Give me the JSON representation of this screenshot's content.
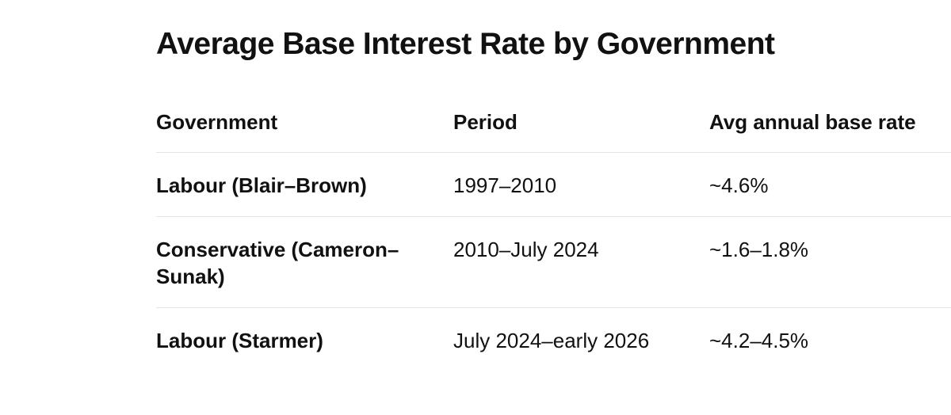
{
  "title": "Average Base Interest Rate by Government",
  "table": {
    "header": [
      "Government",
      "Period",
      "Avg annual base rate"
    ],
    "rows": [
      [
        "Labour (Blair–Brown)",
        "1997–2010",
        "~4.6%"
      ],
      [
        "Conservative (Cameron–Sunak)",
        "2010–July 2024",
        "~1.6–1.8%"
      ],
      [
        "Labour (Starmer)",
        "July 2024–early 2026",
        "~4.2–4.5%"
      ]
    ]
  }
}
